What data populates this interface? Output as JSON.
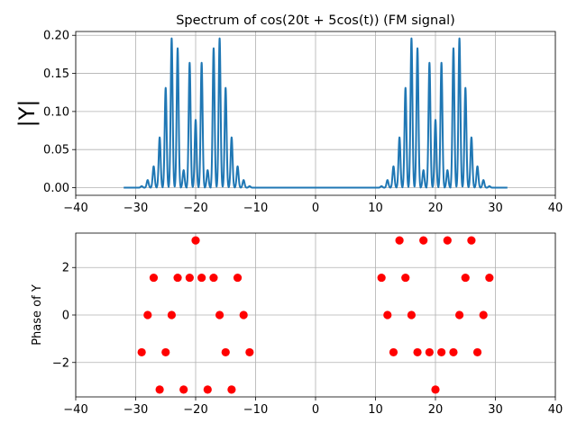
{
  "chart_data": [
    {
      "type": "line",
      "title": "Spectrum of cos(20t + 5cos(t)) (FM signal)",
      "xlabel": "",
      "ylabel": "|Y|",
      "xlim": [
        -40,
        40
      ],
      "ylim": [
        -0.01,
        0.205
      ],
      "xticks": [
        -40,
        -30,
        -20,
        -10,
        0,
        10,
        20,
        30,
        40
      ],
      "yticks": [
        0.0,
        0.05,
        0.1,
        0.15,
        0.2
      ],
      "ytick_labels": [
        "0.00",
        "0.05",
        "0.10",
        "0.15",
        "0.20"
      ],
      "grid": true,
      "color": "#1f77b4",
      "x_range": [
        -32,
        32
      ],
      "peaks": {
        "x": [
          -29,
          -28,
          -27,
          -26,
          -25,
          -24,
          -23,
          -22,
          -21,
          -20,
          -19,
          -18,
          -17,
          -16,
          -15,
          -14,
          -13,
          -12,
          -11,
          11,
          12,
          13,
          14,
          15,
          16,
          17,
          18,
          19,
          20,
          21,
          22,
          23,
          24,
          25,
          26,
          27,
          28,
          29
        ],
        "y": [
          0.002,
          0.01,
          0.028,
          0.066,
          0.131,
          0.196,
          0.183,
          0.023,
          0.164,
          0.089,
          0.164,
          0.023,
          0.183,
          0.196,
          0.131,
          0.066,
          0.028,
          0.01,
          0.002,
          0.002,
          0.01,
          0.028,
          0.066,
          0.131,
          0.196,
          0.183,
          0.023,
          0.164,
          0.089,
          0.164,
          0.023,
          0.183,
          0.196,
          0.131,
          0.066,
          0.028,
          0.01,
          0.002
        ]
      }
    },
    {
      "type": "scatter",
      "xlabel": "",
      "ylabel": "Phase of Y",
      "xlim": [
        -40,
        40
      ],
      "ylim": [
        -3.45,
        3.45
      ],
      "xticks": [
        -40,
        -30,
        -20,
        -10,
        0,
        10,
        20,
        30,
        40
      ],
      "yticks": [
        -2,
        0,
        2
      ],
      "grid": true,
      "color": "#ff0000",
      "x": [
        -29,
        -28,
        -27,
        -26,
        -25,
        -24,
        -23,
        -22,
        -21,
        -20,
        -19,
        -18,
        -17,
        -16,
        -15,
        -14,
        -13,
        -12,
        -11,
        11,
        12,
        13,
        14,
        15,
        16,
        17,
        18,
        19,
        20,
        21,
        22,
        23,
        24,
        25,
        26,
        27,
        28,
        29
      ],
      "y": [
        -1.5708,
        0,
        1.5708,
        -3.1416,
        -1.5708,
        0,
        1.5708,
        -3.1416,
        1.5708,
        3.1416,
        1.5708,
        -3.1416,
        1.5708,
        0,
        -1.5708,
        -3.1416,
        1.5708,
        0,
        -1.5708,
        1.5708,
        0,
        -1.5708,
        3.1416,
        1.5708,
        0,
        -1.5708,
        3.1416,
        -1.5708,
        -3.1416,
        -1.5708,
        3.1416,
        -1.5708,
        0,
        1.5708,
        3.1416,
        -1.5708,
        0,
        1.5708
      ]
    }
  ]
}
